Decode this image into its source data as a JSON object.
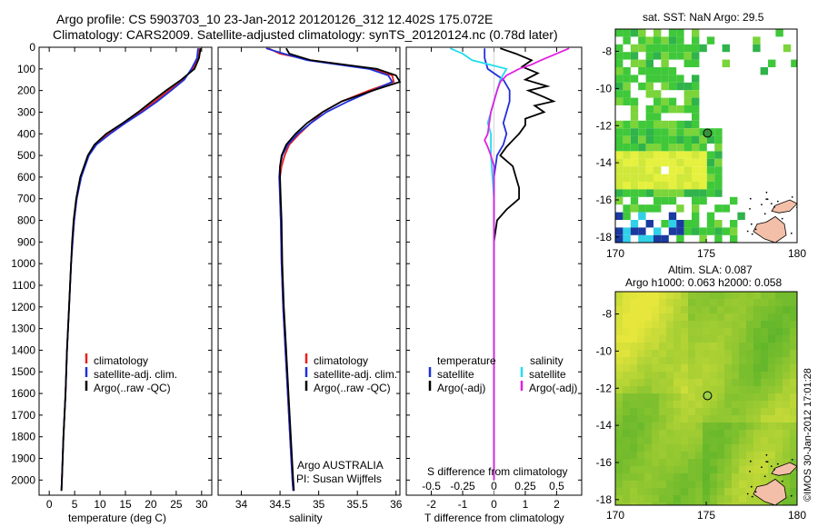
{
  "header": {
    "line1": "Argo profile: CS 5903703_10 23-Jan-2012 20120126_312 12.402S 175.072E",
    "line2": "Climatology: CARS2009. Satellite-adjusted climatology: synTS_20120124.nc (0.78d later)"
  },
  "footer": {
    "timestamp": "©IMOS 30-Jan-2012 17:01:28"
  },
  "chart_data": [
    {
      "type": "line",
      "panel": "temperature",
      "xlabel": "temperature (deg C)",
      "xlim": [
        -2,
        32
      ],
      "xticks": [
        0,
        5,
        10,
        15,
        20,
        25,
        30
      ],
      "ylim": [
        2070,
        0
      ],
      "yticks": [
        0,
        100,
        200,
        300,
        400,
        500,
        600,
        700,
        800,
        900,
        1000,
        1100,
        1200,
        1300,
        1400,
        1500,
        1600,
        1700,
        1800,
        1900,
        2000
      ],
      "legend": [
        "climatology",
        "satellite-adj. clim.",
        "Argo(..raw -QC)"
      ],
      "series": [
        {
          "name": "climatology",
          "color": "#e8201e",
          "depth": [
            5,
            50,
            100,
            150,
            200,
            250,
            300,
            350,
            400,
            450,
            500,
            600,
            700,
            800,
            900,
            1000,
            1200,
            1400,
            1600,
            1800,
            2000,
            2050
          ],
          "values": [
            29.6,
            29.4,
            28.3,
            26.3,
            23.5,
            20.8,
            17.8,
            14.7,
            11.5,
            9.0,
            7.7,
            6.2,
            5.4,
            4.9,
            4.6,
            4.3,
            3.9,
            3.5,
            3.2,
            2.8,
            2.5,
            2.4
          ]
        },
        {
          "name": "satellite-adj. clim.",
          "color": "#1f30d8",
          "depth": [
            5,
            50,
            100,
            150,
            200,
            250,
            300,
            350,
            400,
            450,
            500,
            600,
            700,
            800,
            900,
            1000,
            1200,
            1400,
            1600,
            1800,
            2000,
            2050
          ],
          "values": [
            29.3,
            29.1,
            28.0,
            26.6,
            24.0,
            21.3,
            18.3,
            15.0,
            12.0,
            9.3,
            7.8,
            6.3,
            5.4,
            4.9,
            4.6,
            4.3,
            3.9,
            3.5,
            3.2,
            2.8,
            2.5,
            2.4
          ]
        },
        {
          "name": "Argo(..raw -QC)",
          "color": "#000000",
          "depth": [
            5,
            50,
            100,
            150,
            200,
            250,
            300,
            350,
            400,
            450,
            500,
            600,
            700,
            800,
            900,
            1000,
            1200,
            1400,
            1600,
            1800,
            2000,
            2050
          ],
          "values": [
            29.8,
            29.5,
            28.6,
            26.0,
            23.0,
            20.2,
            17.5,
            14.5,
            11.2,
            8.9,
            7.6,
            6.1,
            5.3,
            4.8,
            4.5,
            4.3,
            3.9,
            3.5,
            3.2,
            2.8,
            2.5,
            2.4
          ]
        }
      ]
    },
    {
      "type": "line",
      "panel": "salinity",
      "xlabel": "salinity",
      "xlim": [
        33.7,
        36.05
      ],
      "xticks": [
        34,
        34.5,
        35,
        35.5,
        36
      ],
      "xticklabels": [
        "34",
        "34.5",
        "35",
        "35.5",
        "36"
      ],
      "ylim": [
        2070,
        0
      ],
      "legend": [
        "climatology",
        "satellite-adj. clim.",
        "Argo(..raw -QC)"
      ],
      "annotation": [
        "Argo AUSTRALIA",
        "PI: Susan Wijffels"
      ],
      "series": [
        {
          "name": "climatology",
          "color": "#e8201e",
          "depth": [
            5,
            30,
            60,
            100,
            130,
            160,
            200,
            250,
            300,
            350,
            400,
            450,
            500,
            550,
            600,
            700,
            800,
            1000,
            1200,
            1400,
            1600,
            1800,
            2000,
            2050
          ],
          "values": [
            34.35,
            34.5,
            34.9,
            35.7,
            35.95,
            35.97,
            35.65,
            35.3,
            35.05,
            34.9,
            34.75,
            34.62,
            34.56,
            34.52,
            34.5,
            34.5,
            34.51,
            34.52,
            34.54,
            34.57,
            34.6,
            34.63,
            34.66,
            34.67
          ]
        },
        {
          "name": "satellite-adj. clim.",
          "color": "#1f30d8",
          "depth": [
            5,
            30,
            60,
            100,
            130,
            160,
            200,
            250,
            300,
            350,
            400,
            450,
            500,
            550,
            600,
            700,
            800,
            1000,
            1200,
            1400,
            1600,
            1800,
            2000,
            2050
          ],
          "values": [
            34.32,
            34.55,
            34.85,
            35.65,
            35.9,
            35.95,
            35.7,
            35.38,
            35.1,
            34.9,
            34.73,
            34.6,
            34.53,
            34.5,
            34.49,
            34.5,
            34.51,
            34.52,
            34.54,
            34.57,
            34.6,
            34.63,
            34.66,
            34.67
          ]
        },
        {
          "name": "Argo(..raw -QC)",
          "color": "#000000",
          "depth": [
            5,
            30,
            60,
            100,
            130,
            160,
            200,
            250,
            300,
            350,
            400,
            450,
            500,
            550,
            600,
            700,
            800,
            1000,
            1200,
            1400,
            1600,
            1800,
            2000,
            2050
          ],
          "values": [
            34.58,
            34.62,
            34.9,
            35.75,
            36.0,
            36.05,
            35.7,
            35.3,
            35.05,
            34.85,
            34.7,
            34.58,
            34.52,
            34.5,
            34.5,
            34.51,
            34.52,
            34.53,
            34.55,
            34.58,
            34.61,
            34.64,
            34.67,
            34.68
          ]
        }
      ]
    },
    {
      "type": "line",
      "panel": "difference",
      "xlabel": "T difference from climatology",
      "xlim": [
        -2.8,
        2.8
      ],
      "xticks": [
        -2,
        -1,
        0,
        1,
        2
      ],
      "s_axis_label": "S difference from climatology",
      "s_ticks": [
        "-0.5",
        "-0.25",
        "0",
        "0.25",
        "0.5"
      ],
      "s_tick_positions": [
        -2,
        -1,
        0,
        1,
        2
      ],
      "ylim": [
        2070,
        0
      ],
      "legend_titles": [
        "temperature",
        "salinity"
      ],
      "legend": [
        "satellite",
        "Argo(-adj)",
        "satellite",
        "Argo(-adj)"
      ],
      "series": [
        {
          "name": "satellite",
          "color": "#1f30d8",
          "depth": [
            5,
            50,
            100,
            150,
            200,
            250,
            300,
            350,
            400,
            450,
            500,
            550,
            600,
            700,
            800,
            1000,
            1400,
            2000
          ],
          "values": [
            -0.3,
            -0.3,
            -0.2,
            0.3,
            0.5,
            0.5,
            0.4,
            0.3,
            0.4,
            0.3,
            0.1,
            0.05,
            0.0,
            0.0,
            0.0,
            0.0,
            0.0,
            0.0
          ]
        },
        {
          "name": "Argo(-adj)",
          "color": "#000000",
          "depth": [
            5,
            30,
            60,
            90,
            120,
            150,
            180,
            200,
            230,
            250,
            270,
            300,
            330,
            360,
            400,
            430,
            460,
            500,
            550,
            600,
            650,
            700,
            750,
            800,
            900,
            1000,
            1200,
            1400,
            1700,
            2000
          ],
          "values": [
            0.2,
            0.7,
            1.2,
            0.9,
            1.4,
            1.0,
            1.7,
            1.1,
            1.6,
            1.9,
            1.3,
            1.6,
            1.0,
            1.0,
            0.8,
            0.6,
            0.4,
            0.2,
            0.6,
            0.7,
            0.8,
            0.8,
            0.4,
            0.1,
            0.0,
            0.0,
            0.0,
            0.0,
            0.0,
            0.0
          ]
        },
        {
          "name": "satellite",
          "color": "#22dcf0",
          "depth": [
            5,
            30,
            60,
            100,
            150,
            200,
            250,
            300,
            350,
            400,
            450,
            500,
            600,
            700,
            800,
            1000,
            1400,
            2000
          ],
          "values": [
            -1.4,
            -1.0,
            -0.7,
            0.4,
            0.2,
            0.1,
            0.0,
            -0.1,
            -0.2,
            -0.1,
            -0.1,
            -0.1,
            -0.05,
            0.0,
            0.0,
            0.0,
            0.0,
            0.0
          ]
        },
        {
          "name": "Argo(-adj)",
          "color": "#e020e0",
          "depth": [
            5,
            30,
            60,
            80,
            100,
            130,
            160,
            200,
            250,
            300,
            350,
            400,
            430,
            460,
            500,
            550,
            600,
            700,
            800,
            1000,
            1400,
            2000
          ],
          "values": [
            2.4,
            2.0,
            1.5,
            1.2,
            0.8,
            0.4,
            0.2,
            0.1,
            0.0,
            -0.1,
            -0.15,
            -0.2,
            -0.3,
            -0.2,
            -0.1,
            0.0,
            0.0,
            0.0,
            0.0,
            0.0,
            0.0,
            0.0
          ]
        }
      ]
    },
    {
      "type": "heatmap",
      "panel": "sst_map",
      "title": "sat. SST: NaN Argo: 29.5",
      "xlim": [
        170,
        180
      ],
      "ylim": [
        -18.3,
        -6.8
      ],
      "xticks": [
        170,
        175,
        180
      ],
      "yticks": [
        -8,
        -10,
        -12,
        -14,
        -16,
        -18
      ],
      "marker": {
        "lon": 175.072,
        "lat": -12.402
      }
    },
    {
      "type": "heatmap",
      "panel": "sla_map",
      "title": "Altim. SLA: 0.087",
      "subtitle": "Argo h1000: 0.063 h2000: 0.058",
      "xlim": [
        170,
        180
      ],
      "ylim": [
        -18.3,
        -6.8
      ],
      "xticks": [
        170,
        175,
        180
      ],
      "yticks": [
        -8,
        -10,
        -12,
        -14,
        -16,
        -18
      ],
      "marker": {
        "lon": 175.072,
        "lat": -12.402
      }
    }
  ]
}
